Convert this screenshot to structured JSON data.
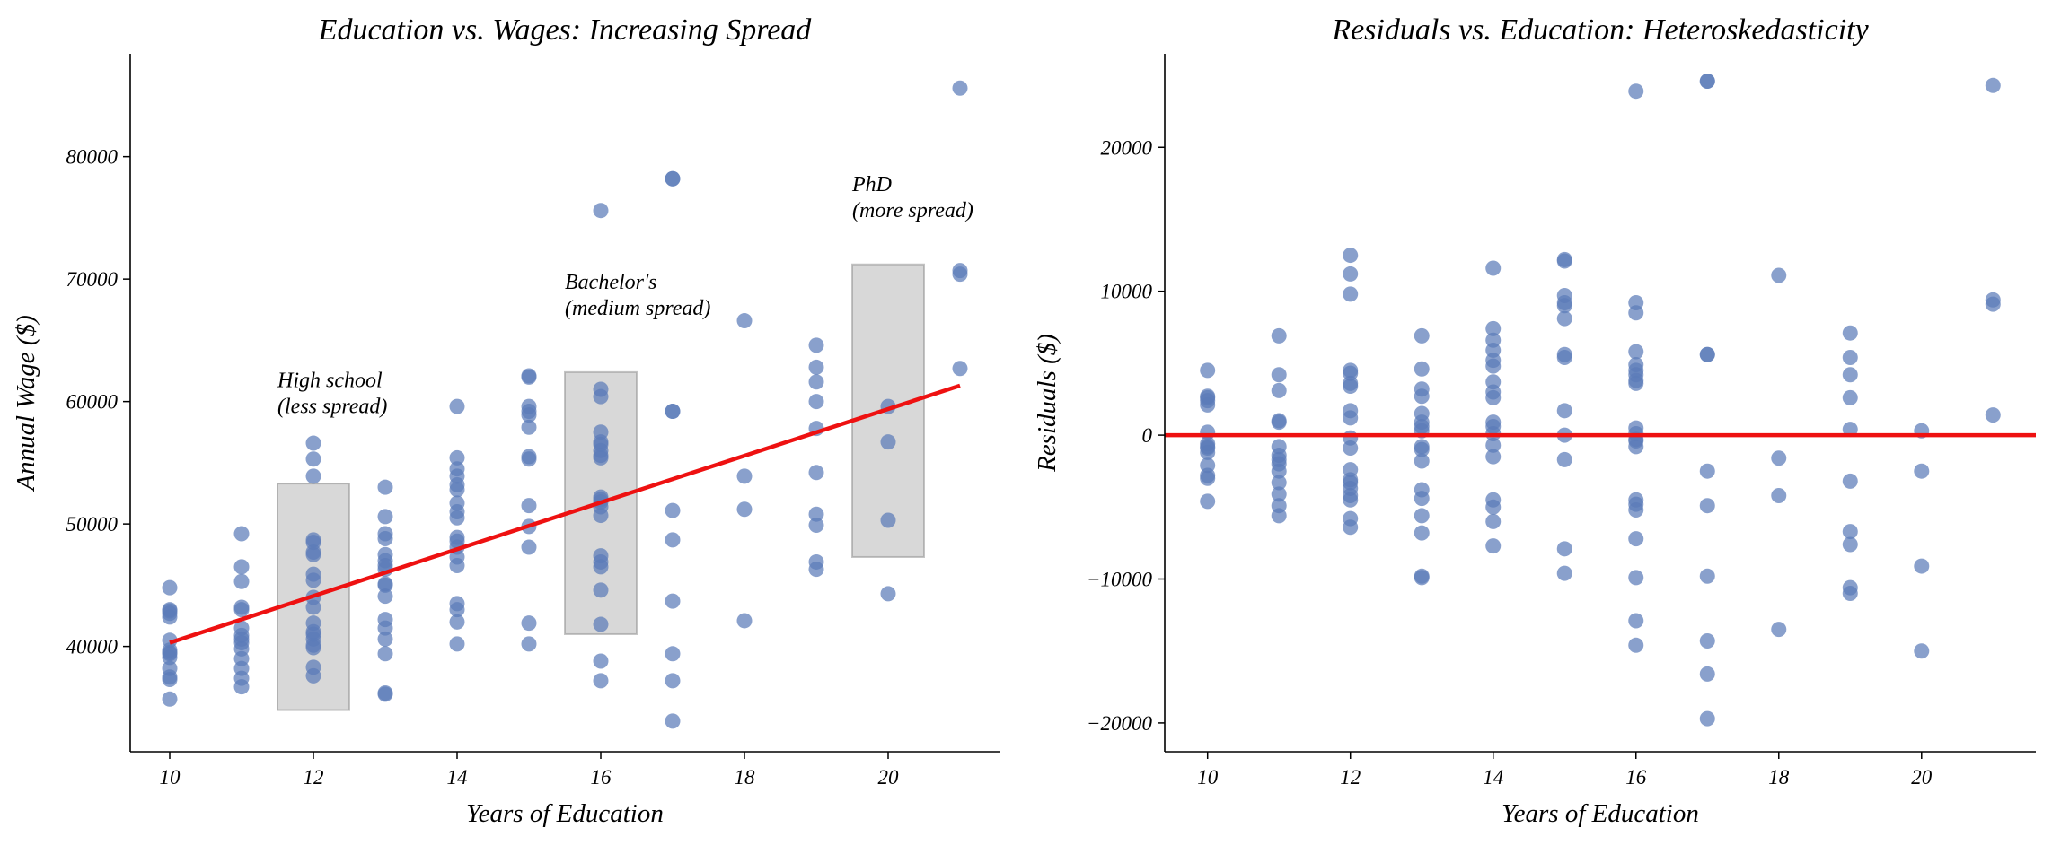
{
  "colors": {
    "points": "#5b7bb9",
    "fit_line": "#ee1111",
    "band": "#a9a9a9",
    "axis": "#000000"
  },
  "chart_data": [
    {
      "type": "scatter",
      "title": "Education vs. Wages: Increasing Spread",
      "xlabel": "Years of Education",
      "ylabel": "Annual Wage ($)",
      "xlim": [
        9.45,
        21.55
      ],
      "ylim": [
        31400,
        88400
      ],
      "xticks": [
        10,
        12,
        14,
        16,
        18,
        20
      ],
      "yticks": [
        40000,
        50000,
        60000,
        70000,
        80000
      ],
      "grid": false,
      "legend": "none",
      "series": [
        {
          "x": [
            10,
            10,
            10,
            10,
            10,
            10,
            10,
            10,
            10,
            10,
            10,
            10,
            10,
            10,
            11,
            11,
            11,
            11,
            11,
            11,
            11,
            11,
            11,
            11,
            11,
            11,
            11,
            11,
            12,
            12,
            12,
            12,
            12,
            12,
            12,
            12,
            12,
            12,
            12,
            12,
            12,
            12,
            12,
            12,
            12,
            12,
            12,
            13,
            13,
            13,
            13,
            13,
            13,
            13,
            13,
            13,
            13,
            13,
            13,
            13,
            13,
            13,
            13,
            13,
            14,
            14,
            14,
            14,
            14,
            14,
            14,
            14,
            14,
            14,
            14,
            14,
            14,
            14,
            14,
            14,
            14,
            14,
            15,
            15,
            15,
            15,
            15,
            15,
            15,
            15,
            15,
            15,
            15,
            15,
            15,
            16,
            16,
            16,
            16,
            16,
            16,
            16,
            16,
            16,
            16,
            16,
            16,
            16,
            16,
            16,
            16,
            16,
            16,
            16,
            16,
            16,
            17,
            17,
            17,
            17,
            17,
            17,
            17,
            17,
            17,
            17,
            18,
            18,
            18,
            18,
            19,
            19,
            19,
            19,
            19,
            19,
            19,
            19,
            19,
            19,
            20,
            20,
            20,
            20,
            21,
            21,
            21,
            21
          ],
          "y": [
            44800,
            43000,
            42700,
            42400,
            40500,
            39700,
            39400,
            39100,
            38200,
            37500,
            37300,
            35700,
            42900,
            39500,
            49200,
            46500,
            45300,
            43200,
            43000,
            41500,
            40900,
            40300,
            39800,
            39000,
            38200,
            37400,
            36700,
            40600,
            56600,
            55300,
            53900,
            48700,
            47700,
            47500,
            45900,
            45400,
            44000,
            43200,
            41900,
            41000,
            40600,
            40100,
            39900,
            38300,
            37600,
            48500,
            41200,
            53000,
            50600,
            49200,
            48800,
            47500,
            47000,
            46300,
            45100,
            44100,
            42200,
            41500,
            40600,
            39400,
            36200,
            36100,
            46600,
            45000,
            59600,
            55400,
            54500,
            53900,
            53200,
            52800,
            51700,
            50500,
            48900,
            48600,
            48100,
            47300,
            46600,
            43500,
            43000,
            42000,
            40200,
            51000,
            62100,
            59600,
            59200,
            57900,
            55500,
            55300,
            51500,
            49800,
            48100,
            41900,
            40200,
            62000,
            58900,
            75600,
            61000,
            60400,
            57500,
            56700,
            56000,
            55600,
            55400,
            52200,
            51800,
            51400,
            50700,
            47400,
            46900,
            46500,
            44600,
            41800,
            38800,
            37200,
            56500,
            52000,
            78200,
            59200,
            51100,
            48700,
            43700,
            39400,
            37200,
            33900,
            78200,
            59200,
            66600,
            53900,
            51200,
            42100,
            64600,
            62800,
            61600,
            60000,
            57800,
            54200,
            50800,
            49900,
            46900,
            46300,
            59600,
            56700,
            50300,
            44300,
            85600,
            70700,
            70400,
            62700
          ],
          "fit_line": {
            "x": [
              10,
              21
            ],
            "y": [
              40300,
              61300
            ]
          }
        }
      ],
      "bands": [
        {
          "x": [
            11.5,
            12.5
          ],
          "y": [
            34800,
            53300
          ]
        },
        {
          "x": [
            15.5,
            16.5
          ],
          "y": [
            41000,
            62400
          ]
        },
        {
          "x": [
            19.5,
            20.5
          ],
          "y": [
            47300,
            71200
          ]
        }
      ],
      "annotations": [
        {
          "lines": [
            "High school",
            "(less spread)"
          ],
          "x": 11.5,
          "y": 61200
        },
        {
          "lines": [
            "Bachelor's",
            "(medium spread)"
          ],
          "x": 15.5,
          "y": 69200
        },
        {
          "lines": [
            "PhD",
            "(more spread)"
          ],
          "x": 19.5,
          "y": 77200
        }
      ]
    },
    {
      "type": "scatter",
      "title": "Residuals vs. Education: Heteroskedasticity",
      "xlabel": "Years of Education",
      "ylabel": "Residuals ($)",
      "xlim": [
        9.4,
        21.6
      ],
      "ylim": [
        -22000,
        26500
      ],
      "xticks": [
        10,
        12,
        14,
        16,
        18,
        20
      ],
      "yticks": [
        -20000,
        -10000,
        0,
        10000,
        20000
      ],
      "grid": false,
      "legend": "none",
      "series": [
        {
          "x": [
            10,
            10,
            10,
            10,
            10,
            10,
            10,
            10,
            10,
            10,
            10,
            10,
            10,
            10,
            11,
            11,
            11,
            11,
            11,
            11,
            11,
            11,
            11,
            11,
            11,
            11,
            11,
            11,
            12,
            12,
            12,
            12,
            12,
            12,
            12,
            12,
            12,
            12,
            12,
            12,
            12,
            12,
            12,
            12,
            12,
            12,
            12,
            13,
            13,
            13,
            13,
            13,
            13,
            13,
            13,
            13,
            13,
            13,
            13,
            13,
            13,
            13,
            13,
            13,
            14,
            14,
            14,
            14,
            14,
            14,
            14,
            14,
            14,
            14,
            14,
            14,
            14,
            14,
            14,
            14,
            14,
            14,
            15,
            15,
            15,
            15,
            15,
            15,
            15,
            15,
            15,
            15,
            15,
            15,
            15,
            16,
            16,
            16,
            16,
            16,
            16,
            16,
            16,
            16,
            16,
            16,
            16,
            16,
            16,
            16,
            16,
            16,
            16,
            16,
            16,
            16,
            17,
            17,
            17,
            17,
            17,
            17,
            17,
            17,
            17,
            17,
            18,
            18,
            18,
            18,
            19,
            19,
            19,
            19,
            19,
            19,
            19,
            19,
            19,
            19,
            20,
            20,
            20,
            20,
            21,
            21,
            21,
            21
          ],
          "y": [
            4500,
            2700,
            2400,
            2100,
            200,
            -600,
            -900,
            -1200,
            -2100,
            -2800,
            -3000,
            -4600,
            2600,
            -800,
            6900,
            4200,
            3100,
            1000,
            900,
            -800,
            -1400,
            -2000,
            -2500,
            -3300,
            -4100,
            -4900,
            -5600,
            -1700,
            12500,
            11200,
            9800,
            4500,
            3600,
            3400,
            1700,
            1200,
            -200,
            -900,
            -2400,
            -3300,
            -3700,
            -4200,
            -4500,
            -5800,
            -6400,
            4300,
            -3100,
            6900,
            4600,
            3200,
            2700,
            1500,
            900,
            300,
            -800,
            -1800,
            -3800,
            -4400,
            -5600,
            -6800,
            -9800,
            -9900,
            600,
            -1000,
            11600,
            7400,
            6600,
            5900,
            5200,
            4800,
            3700,
            2600,
            900,
            600,
            100,
            -700,
            -1500,
            -4500,
            -5000,
            -6000,
            -7700,
            3000,
            12200,
            9700,
            9200,
            8100,
            5600,
            5400,
            1700,
            0,
            -1700,
            -7900,
            -9600,
            12100,
            9000,
            23900,
            9200,
            8500,
            5800,
            4900,
            4200,
            3800,
            3600,
            500,
            100,
            -400,
            -800,
            -4500,
            -4800,
            -5200,
            -7200,
            -9900,
            -12900,
            -14600,
            4500,
            -300,
            24600,
            5600,
            -2500,
            -4900,
            -9800,
            -14300,
            -16600,
            -19700,
            24600,
            5600,
            11100,
            -1600,
            -4200,
            -13500,
            7100,
            5400,
            4200,
            2600,
            400,
            -3200,
            -6700,
            -7600,
            -10600,
            -11000,
            300,
            -2500,
            -9100,
            -15000,
            24300,
            9400,
            9100,
            1400
          ],
          "reference_line": {
            "y": 0
          }
        }
      ]
    }
  ]
}
